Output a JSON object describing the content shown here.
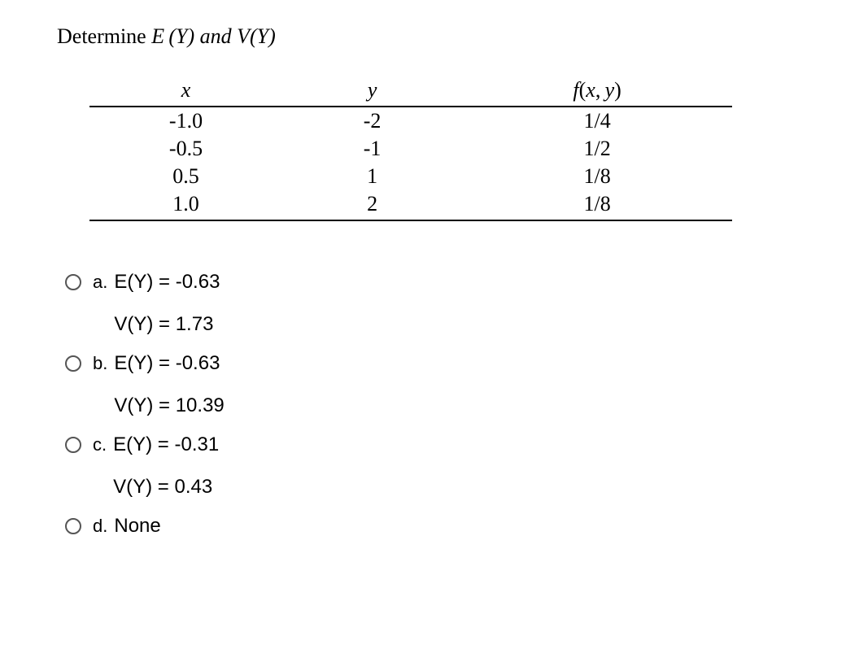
{
  "prompt": {
    "prefix": "Determine ",
    "e_part": "E (Y)",
    "mid": " and ",
    "v_part": "V(Y)"
  },
  "table": {
    "headers": {
      "x": "x",
      "y": "y",
      "f_letter": "f",
      "open": "(",
      "vx": "x",
      "comma": ", ",
      "vy": "y",
      "close": ")"
    },
    "rows": [
      {
        "x": "-1.0",
        "y": "-2",
        "f": "1/4"
      },
      {
        "x": "-0.5",
        "y": "-1",
        "f": "1/2"
      },
      {
        "x": "0.5",
        "y": "1",
        "f": "1/8"
      },
      {
        "x": "1.0",
        "y": "2",
        "f": "1/8"
      }
    ]
  },
  "options": [
    {
      "letter": "a.",
      "line1": "E(Y) = -0.63",
      "line2": "V(Y) = 1.73"
    },
    {
      "letter": "b.",
      "line1": "E(Y) = -0.63",
      "line2": "V(Y) = 10.39"
    },
    {
      "letter": "c.",
      "line1": "E(Y) = -0.31",
      "line2": "V(Y) = 0.43"
    },
    {
      "letter": "d.",
      "line1": "None",
      "line2": ""
    }
  ],
  "colors": {
    "text": "#000000",
    "background": "#ffffff",
    "rule": "#000000",
    "radio_border": "#555555"
  },
  "fonts": {
    "prompt_family": "Times New Roman",
    "prompt_size_pt": 20,
    "table_size_pt": 20,
    "options_family": "Arial",
    "options_size_pt": 18
  }
}
